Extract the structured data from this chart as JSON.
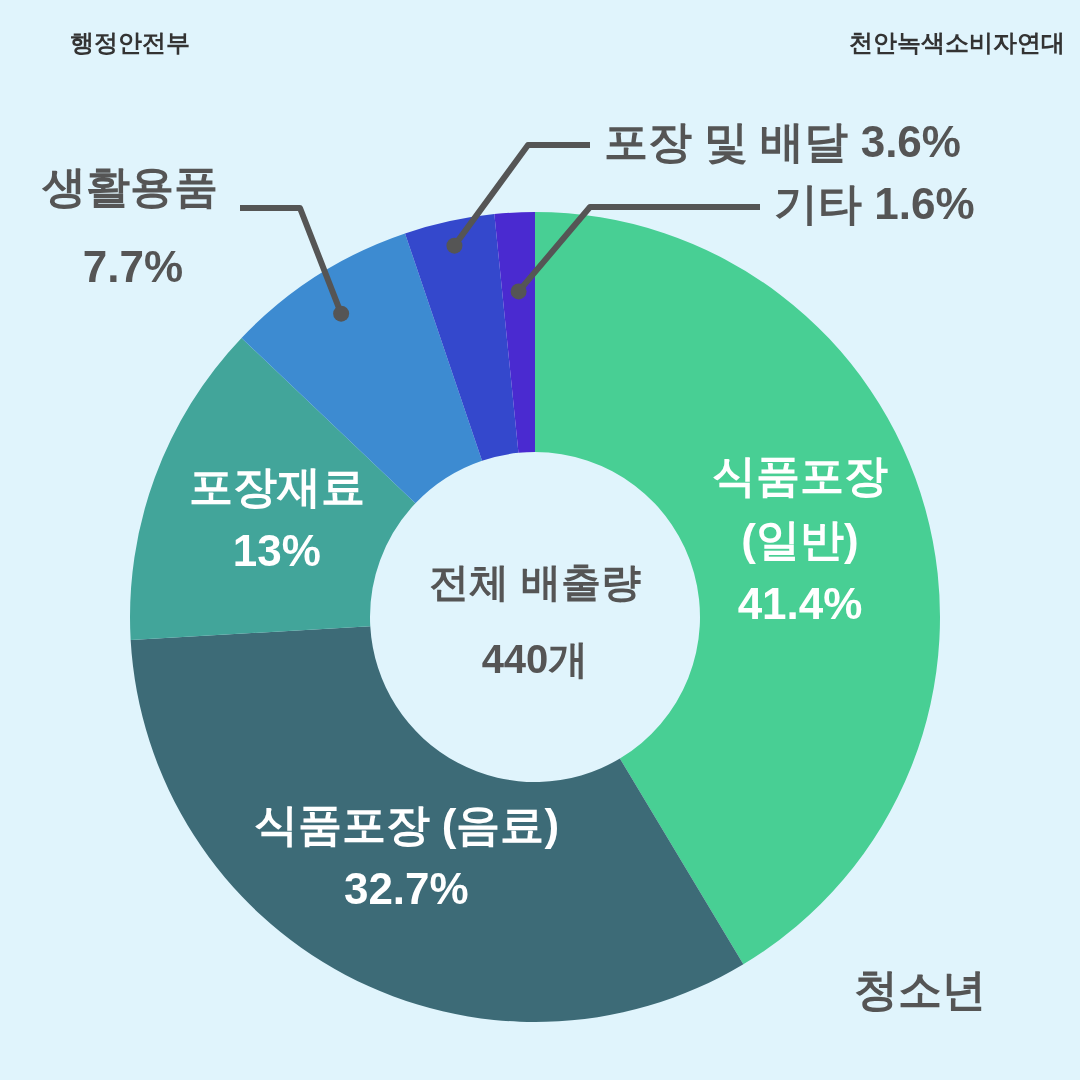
{
  "chart_data": {
    "type": "donut",
    "categories": [
      "식품포장 (일반)",
      "식품포장 (음료)",
      "포장재료",
      "생활용품",
      "포장 및 배달",
      "기타"
    ],
    "values": [
      41.4,
      32.7,
      13,
      7.7,
      3.6,
      1.6
    ],
    "colors": [
      "#48cf94",
      "#3d6b77",
      "#42a59a",
      "#3d8bd1",
      "#3448cc",
      "#4a2ad0"
    ],
    "value_labels": [
      "41.4%",
      "32.7%",
      "13%",
      "7.7%",
      "3.6%",
      "1.6%"
    ],
    "annotations": [
      "행정안전부",
      "천안녹색소비자연대",
      "전체 배출량",
      "440개",
      "청소년"
    ]
  }
}
